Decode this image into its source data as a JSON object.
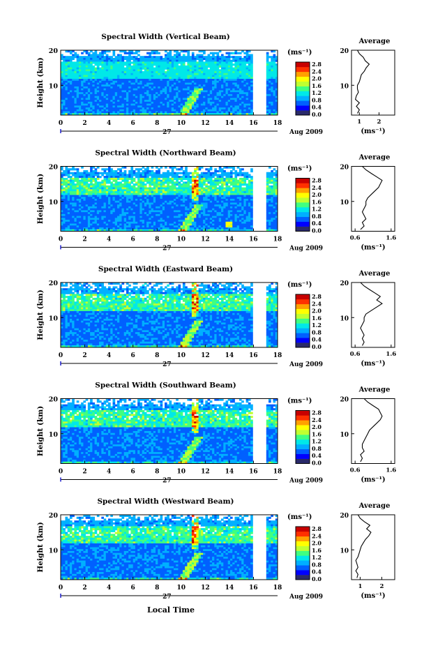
{
  "figure": {
    "x_common_label": "Local Time",
    "colors": [
      "#2a2a6a",
      "#0000ff",
      "#0060ff",
      "#00b0ff",
      "#00e8e8",
      "#40ff80",
      "#c0ff30",
      "#ffff00",
      "#ffa000",
      "#ff3000",
      "#c80000"
    ]
  },
  "chart_data": [
    {
      "type": "heatmap",
      "title": "Spectral Width (Vertical Beam)",
      "ylabel": "Height (km)",
      "yticks": [
        "20",
        "10"
      ],
      "ylim": [
        1.5,
        20
      ],
      "xticks": [
        "0",
        "2",
        "4",
        "6",
        "8",
        "10",
        "12",
        "14",
        "16",
        "18"
      ],
      "xlim": [
        0,
        18
      ],
      "date_day": "27",
      "date_label": "Aug 2009",
      "colorbar": {
        "unit": "(ms⁻¹)",
        "ticks": [
          "2.8",
          "2.4",
          "2.0",
          "1.6",
          "1.2",
          "0.8",
          "0.4",
          "0.0"
        ]
      },
      "average": {
        "title": "Average",
        "xlabel": "(ms⁻¹)",
        "xticks": [
          "1",
          "2"
        ],
        "xlim": [
          0.6,
          2.8
        ],
        "height": [
          2,
          3,
          4,
          5,
          6,
          7,
          8,
          9,
          10,
          11,
          12,
          13,
          14,
          15,
          16,
          17,
          18,
          19,
          20
        ],
        "value": [
          0.9,
          1.0,
          0.85,
          1.0,
          0.8,
          0.85,
          0.95,
          0.9,
          0.9,
          1.0,
          1.05,
          1.1,
          1.25,
          1.35,
          1.5,
          1.3,
          1.2,
          1.0,
          0.9
        ]
      }
    },
    {
      "type": "heatmap",
      "title": "Spectral Width (Northward Beam)",
      "ylabel": "Height (km)",
      "yticks": [
        "20",
        "10"
      ],
      "ylim": [
        1.5,
        20
      ],
      "xticks": [
        "0",
        "2",
        "4",
        "6",
        "8",
        "10",
        "12",
        "14",
        "16",
        "18"
      ],
      "xlim": [
        0,
        18
      ],
      "date_day": "27",
      "date_label": "Aug 2009",
      "colorbar": {
        "unit": "(ms⁻¹)",
        "ticks": [
          "2.8",
          "2.4",
          "2.0",
          "1.6",
          "1.2",
          "0.8",
          "0.4",
          "0.0"
        ]
      },
      "average": {
        "title": "Average",
        "xlabel": "(ms⁻¹)",
        "xticks": [
          "0.6",
          "1.6"
        ],
        "xlim": [
          0.5,
          1.7
        ],
        "height": [
          2,
          3,
          4,
          5,
          6,
          7,
          8,
          9,
          10,
          11,
          12,
          13,
          14,
          15,
          16,
          17,
          18,
          19,
          20
        ],
        "value": [
          0.75,
          0.85,
          0.8,
          0.9,
          0.85,
          0.8,
          0.85,
          0.9,
          0.9,
          0.95,
          1.05,
          1.15,
          1.25,
          1.3,
          1.35,
          1.2,
          1.05,
          0.9,
          0.8
        ]
      }
    },
    {
      "type": "heatmap",
      "title": "Spectral Width (Eastward Beam)",
      "ylabel": "Height (km)",
      "yticks": [
        "20",
        "10"
      ],
      "ylim": [
        1.5,
        20
      ],
      "xticks": [
        "0",
        "2",
        "4",
        "6",
        "8",
        "10",
        "12",
        "14",
        "16",
        "18"
      ],
      "xlim": [
        0,
        18
      ],
      "date_day": "27",
      "date_label": "Aug 2009",
      "colorbar": {
        "unit": "(ms⁻¹)",
        "ticks": [
          "2.8",
          "2.4",
          "2.0",
          "1.6",
          "1.2",
          "0.8",
          "0.4",
          "0.0"
        ]
      },
      "average": {
        "title": "Average",
        "xlabel": "(ms⁻¹)",
        "xticks": [
          "0.6",
          "1.6"
        ],
        "xlim": [
          0.5,
          1.7
        ],
        "height": [
          2,
          3,
          4,
          5,
          6,
          7,
          8,
          9,
          10,
          11,
          12,
          13,
          14,
          15,
          16,
          17,
          18,
          19,
          20
        ],
        "value": [
          0.8,
          0.85,
          0.8,
          0.85,
          0.8,
          0.75,
          0.8,
          0.85,
          0.85,
          0.9,
          1.05,
          1.2,
          1.35,
          1.2,
          1.3,
          1.15,
          1.0,
          0.85,
          0.75
        ]
      }
    },
    {
      "type": "heatmap",
      "title": "Spectral Width (Southward Beam)",
      "ylabel": "Height (km)",
      "yticks": [
        "20",
        "10"
      ],
      "ylim": [
        1.5,
        20
      ],
      "xticks": [
        "0",
        "2",
        "4",
        "6",
        "8",
        "10",
        "12",
        "14",
        "16",
        "18"
      ],
      "xlim": [
        0,
        18
      ],
      "date_day": "27",
      "date_label": "Aug 2009",
      "colorbar": {
        "unit": "(ms⁻¹)",
        "ticks": [
          "2.8",
          "2.4",
          "2.0",
          "1.6",
          "1.2",
          "0.8",
          "0.4",
          "0.0"
        ]
      },
      "average": {
        "title": "Average",
        "xlabel": "(ms⁻¹)",
        "xticks": [
          "0.6",
          "1.6"
        ],
        "xlim": [
          0.5,
          1.7
        ],
        "height": [
          2,
          3,
          4,
          5,
          6,
          7,
          8,
          9,
          10,
          11,
          12,
          13,
          14,
          15,
          16,
          17,
          18,
          19,
          20
        ],
        "value": [
          0.75,
          0.8,
          0.75,
          0.85,
          0.8,
          0.8,
          0.85,
          0.9,
          0.95,
          1.0,
          1.1,
          1.2,
          1.3,
          1.35,
          1.3,
          1.25,
          1.1,
          0.95,
          0.85
        ]
      }
    },
    {
      "type": "heatmap",
      "title": "Spectral Width (Westward Beam)",
      "ylabel": "Height (km)",
      "yticks": [
        "20",
        "10"
      ],
      "ylim": [
        1.5,
        20
      ],
      "xticks": [
        "0",
        "2",
        "4",
        "6",
        "8",
        "10",
        "12",
        "14",
        "16",
        "18"
      ],
      "xlim": [
        0,
        18
      ],
      "date_day": "27",
      "date_label": "Aug 2009",
      "colorbar": {
        "unit": "(ms⁻¹)",
        "ticks": [
          "2.8",
          "2.4",
          "2.0",
          "1.6",
          "1.2",
          "0.8",
          "0.4",
          "0.0"
        ]
      },
      "average": {
        "title": "Average",
        "xlabel": "(ms⁻¹)",
        "xticks": [
          "1",
          "2"
        ],
        "xlim": [
          0.6,
          2.6
        ],
        "height": [
          2,
          3,
          4,
          5,
          6,
          7,
          8,
          9,
          10,
          11,
          12,
          13,
          14,
          15,
          16,
          17,
          18,
          19,
          20
        ],
        "value": [
          0.85,
          0.9,
          0.8,
          0.9,
          0.85,
          0.8,
          0.9,
          0.95,
          1.0,
          1.05,
          1.15,
          1.25,
          1.4,
          1.5,
          1.3,
          1.45,
          1.2,
          1.0,
          0.9
        ]
      }
    }
  ]
}
